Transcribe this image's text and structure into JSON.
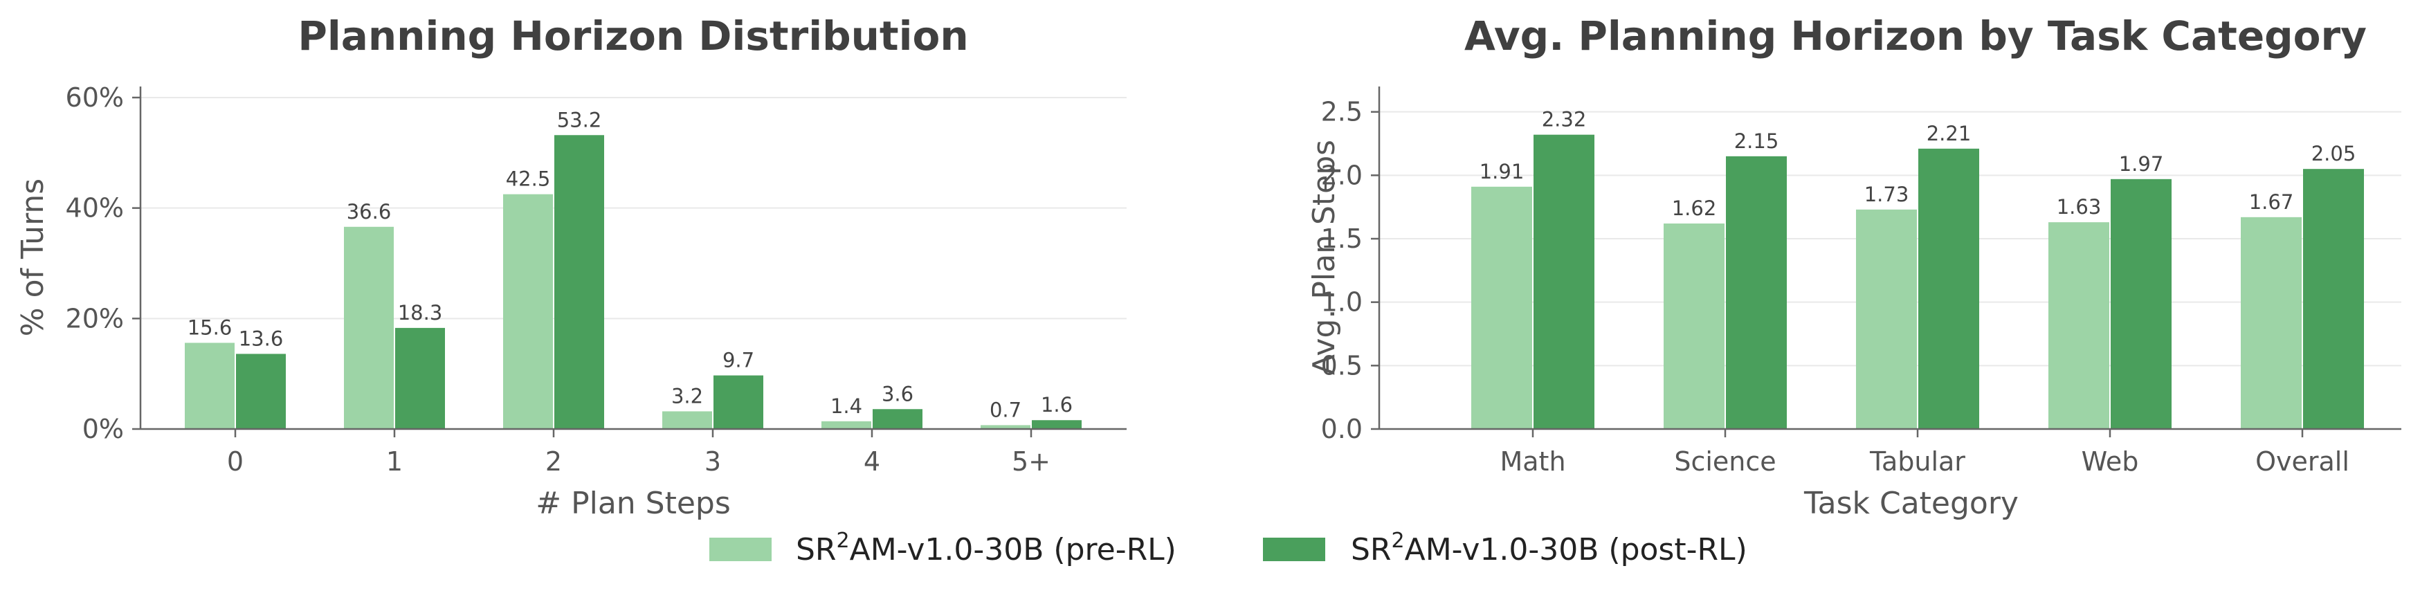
{
  "legend": {
    "series": [
      {
        "name_main": "SR",
        "name_sup": "2",
        "name_rest": "AM-v1.0-30B (pre-RL)",
        "color": "#9dd4a6"
      },
      {
        "name_main": "SR",
        "name_sup": "2",
        "name_rest": "AM-v1.0-30B (post-RL)",
        "color": "#4a9f5c"
      }
    ]
  },
  "chart_data": [
    {
      "type": "bar",
      "title": "Planning Horizon Distribution",
      "xlabel": "# Plan Steps",
      "ylabel": "% of Turns",
      "categories": [
        "0",
        "1",
        "2",
        "3",
        "4",
        "5+"
      ],
      "yticks": [
        "0%",
        "20%",
        "40%",
        "60%"
      ],
      "ytick_values": [
        0,
        20,
        40,
        60
      ],
      "ylim": [
        0,
        62
      ],
      "grid": true,
      "series": [
        {
          "values": [
            15.6,
            36.6,
            42.5,
            3.2,
            1.4,
            0.7
          ],
          "labels": [
            "15.6",
            "36.6",
            "42.5",
            "3.2",
            "1.4",
            "0.7"
          ],
          "color": "#9dd4a6"
        },
        {
          "values": [
            13.6,
            18.3,
            53.2,
            9.7,
            3.6,
            1.6
          ],
          "labels": [
            "13.6",
            "18.3",
            "53.2",
            "9.7",
            "3.6",
            "1.6"
          ],
          "color": "#4a9f5c"
        }
      ]
    },
    {
      "type": "bar",
      "title": "Avg. Planning Horizon by Task Category",
      "xlabel": "Task Category",
      "ylabel": "Avg. Plan Steps",
      "categories": [
        "Math",
        "Science",
        "Tabular",
        "Web",
        "Overall"
      ],
      "yticks": [
        "0.0",
        "0.5",
        "1.0",
        "1.5",
        "2.0",
        "2.5"
      ],
      "ytick_values": [
        0,
        0.5,
        1.0,
        1.5,
        2.0,
        2.5
      ],
      "ylim": [
        0,
        2.7
      ],
      "grid": true,
      "series": [
        {
          "values": [
            1.91,
            1.62,
            1.73,
            1.63,
            1.67
          ],
          "labels": [
            "1.91",
            "1.62",
            "1.73",
            "1.63",
            "1.67"
          ],
          "color": "#9dd4a6"
        },
        {
          "values": [
            2.32,
            2.15,
            2.21,
            1.97,
            2.05
          ],
          "labels": [
            "2.32",
            "2.15",
            "2.21",
            "1.97",
            "2.05"
          ],
          "color": "#4a9f5c"
        }
      ]
    }
  ]
}
